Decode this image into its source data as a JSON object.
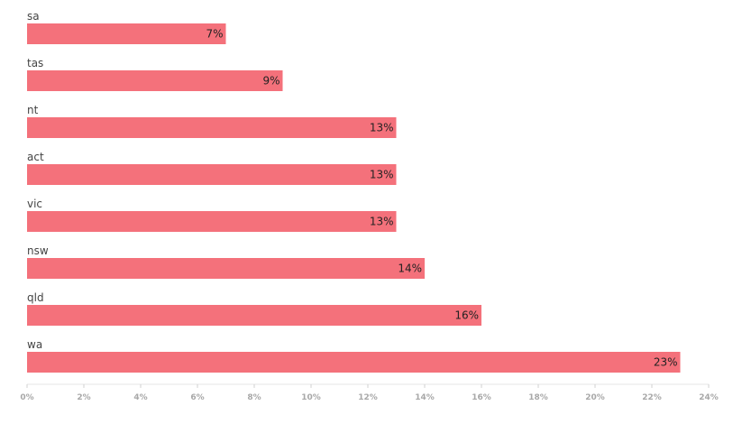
{
  "chart_data": {
    "type": "bar",
    "orientation": "horizontal",
    "categories": [
      "sa",
      "tas",
      "nt",
      "act",
      "vic",
      "nsw",
      "qld",
      "wa"
    ],
    "values": [
      7,
      9,
      13,
      13,
      13,
      14,
      16,
      23
    ],
    "value_labels": [
      "7%",
      "9%",
      "13%",
      "13%",
      "13%",
      "14%",
      "16%",
      "23%"
    ],
    "xlim": [
      0,
      24
    ],
    "x_ticks": [
      0,
      2,
      4,
      6,
      8,
      10,
      12,
      14,
      16,
      18,
      20,
      22,
      24
    ],
    "x_tick_labels": [
      "0%",
      "2%",
      "4%",
      "6%",
      "8%",
      "10%",
      "12%",
      "14%",
      "16%",
      "18%",
      "20%",
      "22%",
      "24%"
    ],
    "grid": false,
    "legend": "none",
    "bar_color": "#f4717b"
  }
}
